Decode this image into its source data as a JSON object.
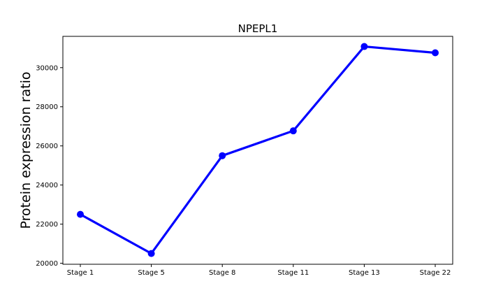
{
  "chart_data": {
    "type": "line",
    "title": "NPEPL1",
    "xlabel": "",
    "ylabel": "Protein expression ratio",
    "categories": [
      "Stage 1",
      "Stage 5",
      "Stage 8",
      "Stage 11",
      "Stage 13",
      "Stage 22"
    ],
    "values": [
      22500,
      20500,
      25500,
      26770,
      31080,
      30760
    ],
    "ylim": [
      19950,
      31600
    ],
    "yticks": [
      20000,
      22000,
      24000,
      26000,
      28000,
      30000
    ],
    "grid": false,
    "color": "#0000ff"
  }
}
